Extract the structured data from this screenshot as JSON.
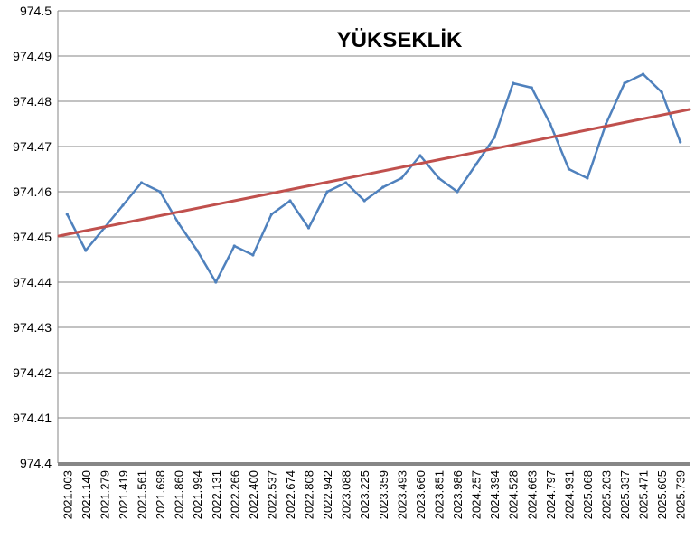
{
  "chart_data": {
    "type": "line",
    "title": "YÜKSEKLİK",
    "xlabel": "",
    "ylabel": "",
    "ylim": [
      974.4,
      974.5
    ],
    "yticks": [
      "974.5",
      "974.49",
      "974.48",
      "974.47",
      "974.46",
      "974.45",
      "974.44",
      "974.43",
      "974.42",
      "974.41",
      "974.4"
    ],
    "categories": [
      "2021.003",
      "2021.140",
      "2021.279",
      "2021.419",
      "2021.561",
      "2021.698",
      "2021.860",
      "2021.994",
      "2022.131",
      "2022.266",
      "2022.400",
      "2022.537",
      "2022.674",
      "2022.808",
      "2022.942",
      "2023.088",
      "2023.225",
      "2023.359",
      "2023.493",
      "2023.660",
      "2023.851",
      "2023.986",
      "2024.257",
      "2024.394",
      "2024.528",
      "2024.663",
      "2024.797",
      "2024.931",
      "2025.068",
      "2025.203",
      "2025.337",
      "2025.471",
      "2025.605",
      "2025.739"
    ],
    "grid": true,
    "series": [
      {
        "color": "#4f81bd",
        "kind": "measurement",
        "x": [
          "2021.003",
          "2021.140",
          "2021.279",
          "2021.419",
          "2021.561",
          "2021.698",
          "2021.860",
          "2021.994",
          "2022.131",
          "2022.266",
          "2022.400",
          "2022.537",
          "2022.674",
          "2022.808",
          "2022.942",
          "2023.088",
          "2023.225",
          "2023.359",
          "2023.493",
          "2023.660",
          "2023.851",
          "2023.986",
          "2024.257",
          "2024.394",
          "2024.528",
          "2024.663",
          "2024.797",
          "2024.931",
          "2025.068",
          "2025.203",
          "2025.337",
          "2025.471",
          "2025.605",
          "2025.739"
        ],
        "values": [
          974.455,
          974.447,
          974.452,
          974.457,
          974.462,
          974.46,
          974.453,
          974.447,
          974.44,
          974.448,
          974.446,
          974.455,
          974.458,
          974.452,
          974.46,
          974.462,
          974.458,
          974.461,
          974.463,
          974.468,
          974.463,
          974.46,
          974.466,
          974.472,
          974.484,
          974.483,
          974.475,
          974.465,
          974.463,
          974.475,
          974.484,
          974.486,
          974.482,
          974.471
        ]
      },
      {
        "color": "#c0504d",
        "kind": "trend",
        "x": [
          "2021.003",
          "2025.739"
        ],
        "values": [
          974.4502,
          974.4782
        ]
      }
    ]
  }
}
